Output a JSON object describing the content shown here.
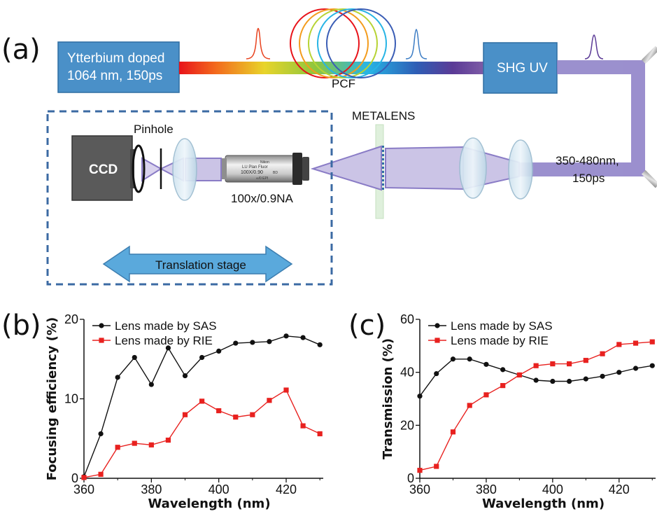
{
  "panel_labels": {
    "a": "(a)",
    "b": "(b)",
    "c": "(c)"
  },
  "diagram": {
    "laser_line1": "Ytterbium doped",
    "laser_line2": "1064 nm, 150ps",
    "pcf": "PCF",
    "shg": "SHG UV",
    "metalens": "METALENS",
    "pinhole": "Pinhole",
    "ccd": "CCD",
    "objective": "100x/0.9NA",
    "objective_engraving": [
      "Nikon",
      "LU Plan Fluor",
      "100X/0.90",
      "BD",
      "∞/0 EPI"
    ],
    "range_line1": "350-480nm,",
    "range_line2": "150ps",
    "stage": "Translation stage"
  },
  "chart_data": [
    {
      "type": "line",
      "panel": "(b)",
      "xlabel": "Wavelength (nm)",
      "ylabel": "Focusing efficiency (%)",
      "xlim": [
        360,
        431
      ],
      "ylim": [
        0,
        20
      ],
      "xticks": [
        360,
        380,
        400,
        420
      ],
      "yticks": [
        0,
        10,
        20
      ],
      "legend_position": "top-left",
      "series": [
        {
          "name": "Lens made by SAS",
          "color": "#111111",
          "marker": "circle",
          "x": [
            360,
            365,
            370,
            375,
            380,
            385,
            390,
            395,
            400,
            405,
            410,
            415,
            420,
            425,
            430
          ],
          "y": [
            0.2,
            5.6,
            12.7,
            15.2,
            11.8,
            16.4,
            12.9,
            15.2,
            16.0,
            17.0,
            17.1,
            17.2,
            17.9,
            17.7,
            16.8
          ]
        },
        {
          "name": "Lens made by RIE",
          "color": "#e8211f",
          "marker": "square",
          "x": [
            360,
            365,
            370,
            375,
            380,
            385,
            390,
            395,
            400,
            405,
            410,
            415,
            420,
            425,
            430
          ],
          "y": [
            0.1,
            0.5,
            3.9,
            4.4,
            4.2,
            4.8,
            8.0,
            9.7,
            8.5,
            7.7,
            8.0,
            9.8,
            11.1,
            6.6,
            5.6
          ]
        }
      ]
    },
    {
      "type": "line",
      "panel": "(c)",
      "xlabel": "Wavelength (nm)",
      "ylabel": "Transmission (%)",
      "xlim": [
        360,
        431
      ],
      "ylim": [
        0,
        60
      ],
      "xticks": [
        360,
        380,
        400,
        420
      ],
      "yticks": [
        0,
        20,
        40,
        60
      ],
      "legend_position": "top-left",
      "series": [
        {
          "name": "Lens made by SAS",
          "color": "#111111",
          "marker": "circle",
          "x": [
            360,
            365,
            370,
            375,
            380,
            385,
            390,
            395,
            400,
            405,
            410,
            415,
            420,
            425,
            430
          ],
          "y": [
            31,
            39.5,
            45,
            45,
            43,
            41,
            39,
            37,
            36.6,
            36.6,
            37.5,
            38.5,
            40,
            41.5,
            42.5
          ]
        },
        {
          "name": "Lens made by RIE",
          "color": "#e8211f",
          "marker": "square",
          "x": [
            360,
            365,
            370,
            375,
            380,
            385,
            390,
            395,
            400,
            405,
            410,
            415,
            420,
            425,
            430
          ],
          "y": [
            3,
            4.5,
            17.5,
            27.5,
            31.5,
            35,
            39,
            42.5,
            43.2,
            43.2,
            44.5,
            47,
            50.5,
            51,
            51.5
          ]
        }
      ]
    }
  ]
}
